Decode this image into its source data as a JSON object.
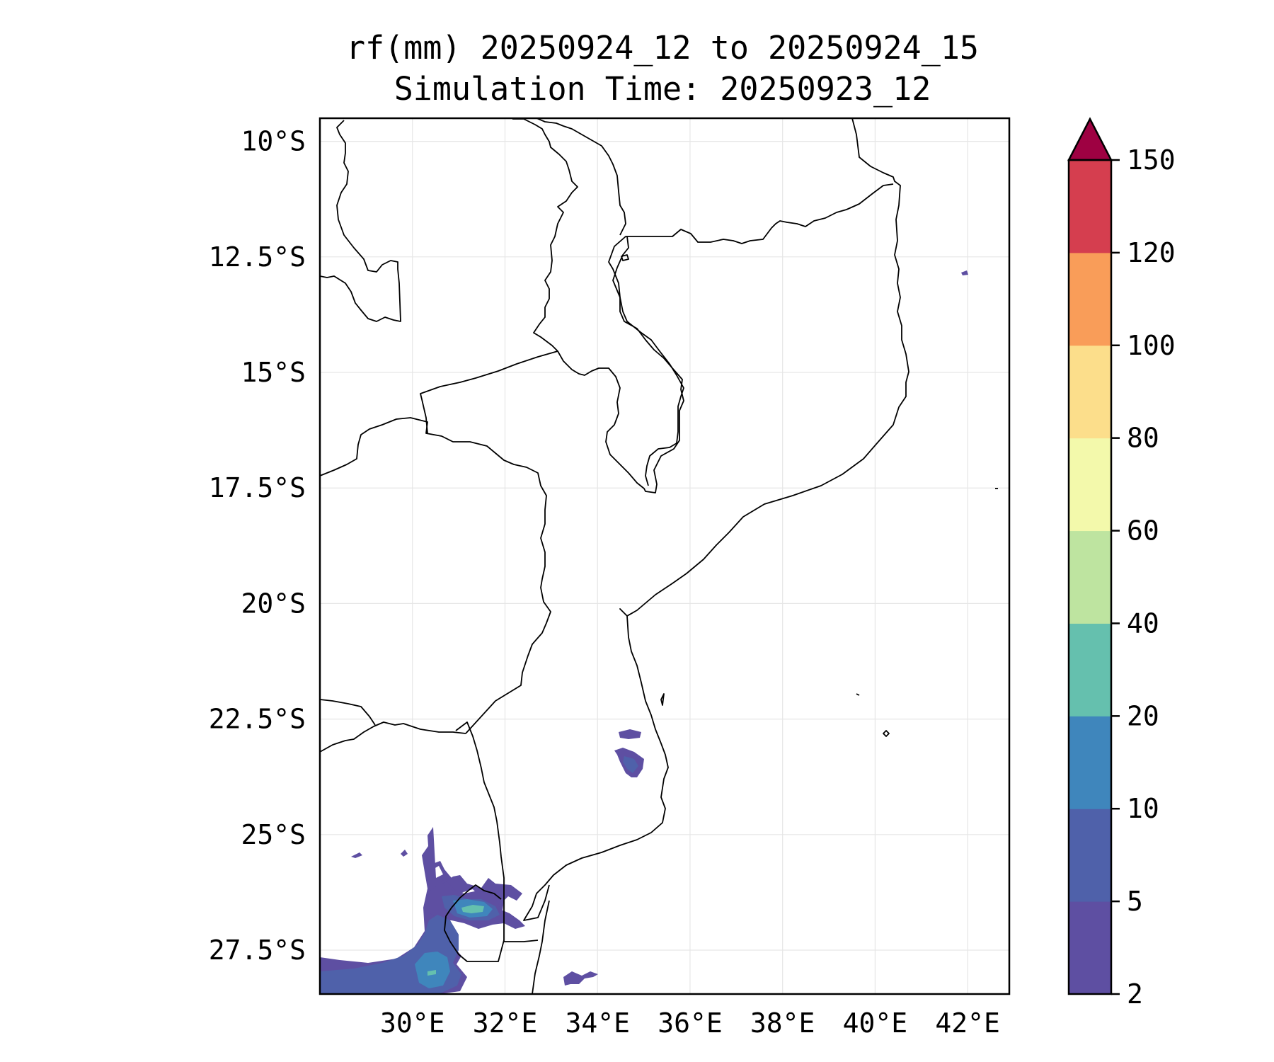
{
  "title": {
    "line1": "rf(mm) 20250924_12 to 20250924_15",
    "line2": "Simulation Time: 20250923_12"
  },
  "map": {
    "lon_range": [
      28.0,
      42.9
    ],
    "lat_range": [
      -28.45,
      -9.5
    ],
    "lon_ticks": [
      30,
      32,
      34,
      36,
      38,
      40,
      42
    ],
    "lon_tick_labels": [
      "30°E",
      "32°E",
      "34°E",
      "36°E",
      "38°E",
      "40°E",
      "42°E"
    ],
    "lat_ticks": [
      -10,
      -12.5,
      -15,
      -17.5,
      -20,
      -22.5,
      -25,
      -27.5
    ],
    "lat_tick_labels": [
      "10°S",
      "12.5°S",
      "15°S",
      "17.5°S",
      "20°S",
      "22.5°S",
      "25°S",
      "27.5°S"
    ],
    "grid": true,
    "coastline_color": "#000000",
    "gridline_color": "#e6e6e6"
  },
  "colorbar": {
    "levels": [
      2,
      5,
      10,
      20,
      40,
      60,
      80,
      100,
      120,
      150
    ],
    "level_labels": [
      "2",
      "5",
      "10",
      "20",
      "40",
      "60",
      "80",
      "100",
      "120",
      "150"
    ],
    "colors": [
      "#5e4fa2",
      "#4f61aa",
      "#3f86bc",
      "#65c0ae",
      "#bee4a0",
      "#f3f9ab",
      "#fcde8b",
      "#f99d59",
      "#d53e4f"
    ],
    "extend_color": "#9e0142",
    "extend": "max"
  },
  "rain_patches": [
    {
      "level": "2-5",
      "color": "#5e4fa2"
    },
    {
      "level": "5-10",
      "color": "#4f61aa"
    },
    {
      "level": "10-20",
      "color": "#3f86bc"
    },
    {
      "level": "20-40",
      "color": "#65c0ae"
    }
  ]
}
